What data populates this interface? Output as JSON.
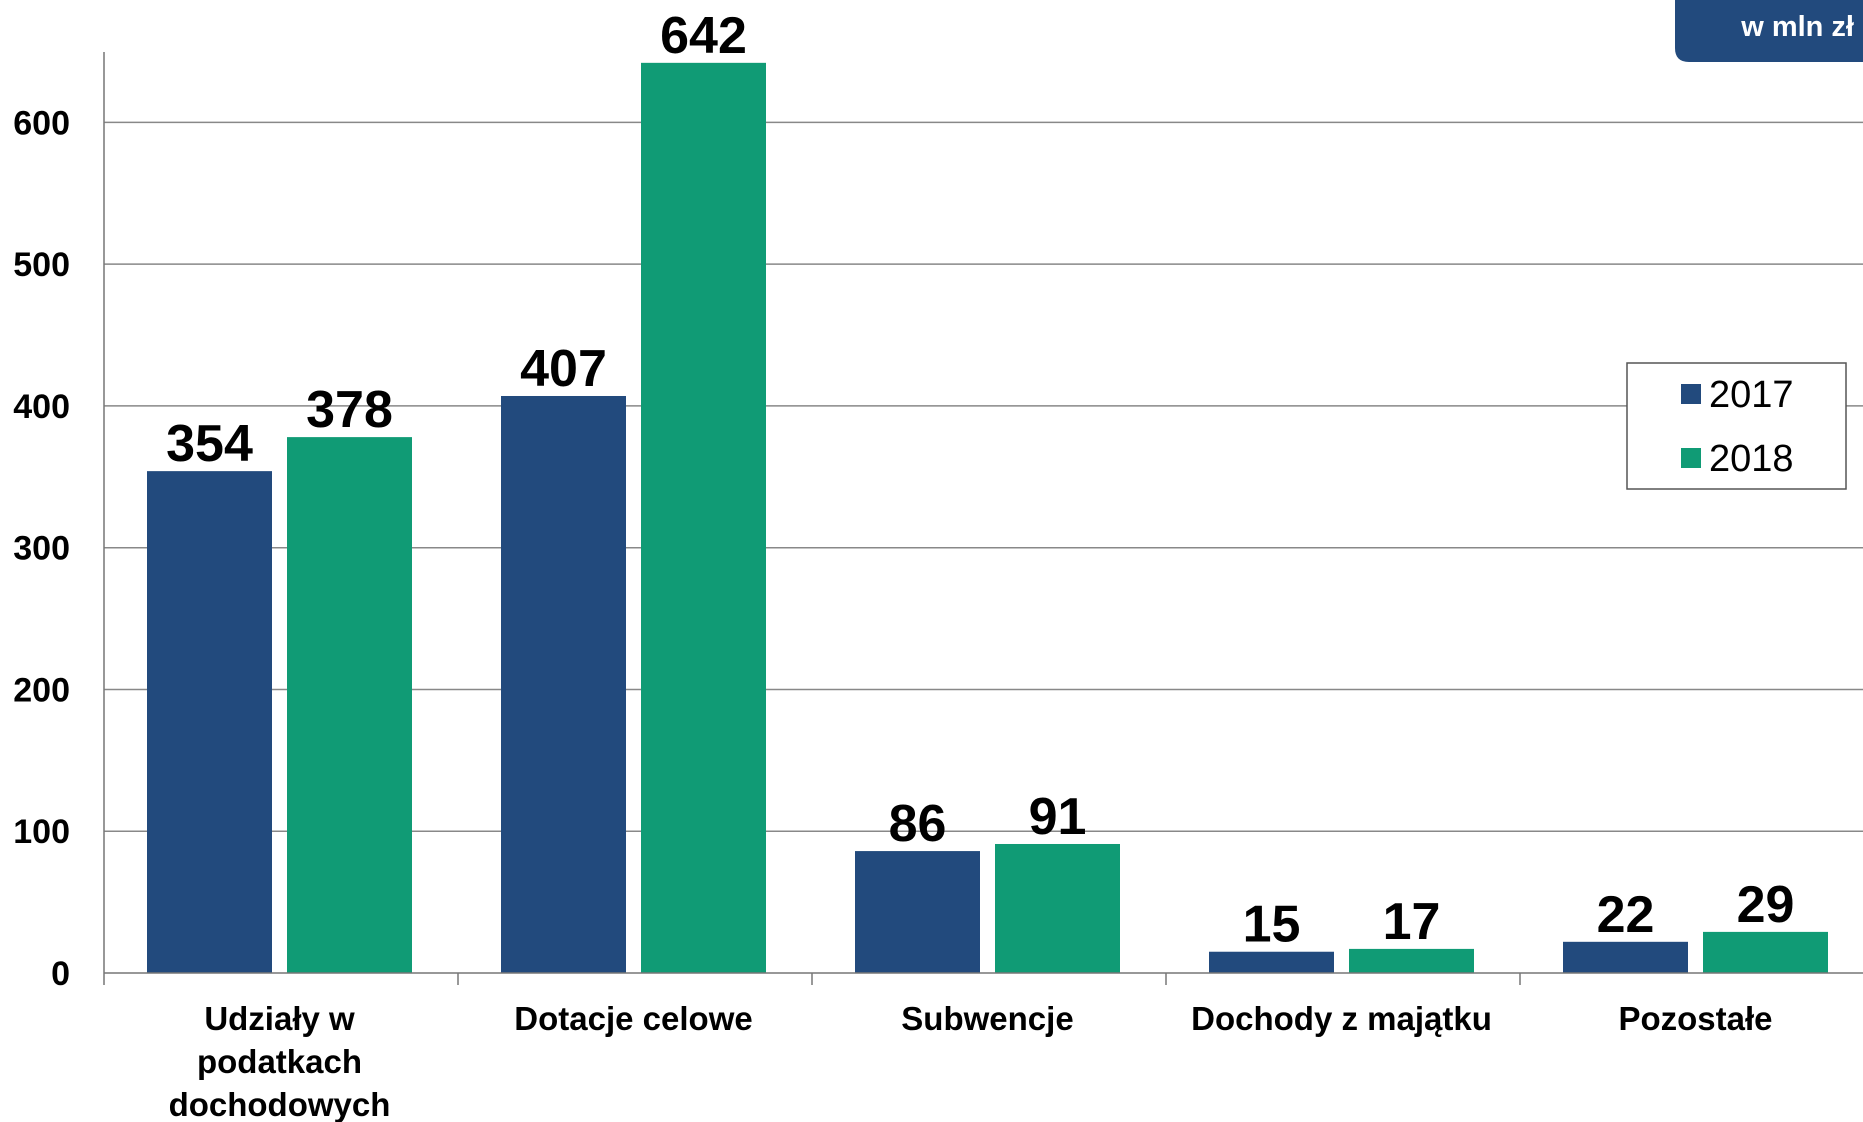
{
  "unit_badge": "w mln zł",
  "colors": {
    "series_2017": "#224a7d",
    "series_2018": "#109b75",
    "badge": "#224a7d",
    "grid": "#888888"
  },
  "chart_data": {
    "type": "bar",
    "categories": [
      [
        "Udziały w",
        "podatkach",
        "dochodowych"
      ],
      [
        "Dotacje celowe"
      ],
      [
        "Subwencje"
      ],
      [
        "Dochody z majątku"
      ],
      [
        "Pozostałe"
      ]
    ],
    "series": [
      {
        "name": "2017",
        "values": [
          354,
          407,
          86,
          15,
          22
        ]
      },
      {
        "name": "2018",
        "values": [
          378,
          642,
          91,
          17,
          29
        ]
      }
    ],
    "yticks": [
      0,
      100,
      200,
      300,
      400,
      500,
      600
    ],
    "ylim": [
      0,
      650
    ],
    "grid": true,
    "legend_position": "right"
  }
}
